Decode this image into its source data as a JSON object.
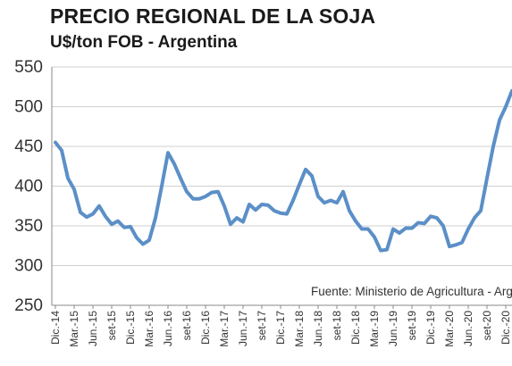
{
  "chart_data": {
    "type": "line",
    "title": "PRECIO REGIONAL DE LA SOJA",
    "subtitle": "U$/ton FOB - Argentina",
    "source": "Fuente: Ministerio de Agricultura - Argentina",
    "ylim": [
      250,
      550
    ],
    "yticks": [
      250,
      300,
      350,
      400,
      450,
      500,
      550
    ],
    "grid": true,
    "line_color": "#5b8fc7",
    "xtick_labels": [
      "Dic.-14",
      "Mar.-15",
      "Jun.-15",
      "set-15",
      "Dic.-15",
      "Mar.-16",
      "Jun.-16",
      "set-16",
      "Dic.-16",
      "Mar.-17",
      "Jun.-17",
      "set-17",
      "Dic.-17",
      "Mar.-18",
      "Jun.-18",
      "set-18",
      "Dic.-18",
      "Mar.-19",
      "Jun.-19",
      "set-19",
      "Dic.-19",
      "Mar.-20",
      "Jun.-20",
      "set-20",
      "Dic.-20"
    ],
    "series": [
      {
        "values": [
          455,
          445,
          410,
          396,
          367,
          361,
          365,
          375,
          362,
          352,
          356,
          348,
          349,
          335,
          327,
          332,
          360,
          400,
          442,
          428,
          410,
          393,
          384,
          384,
          387,
          392,
          393,
          375,
          352,
          360,
          355,
          377,
          370,
          377,
          376,
          369,
          366,
          365,
          382,
          402,
          421,
          413,
          387,
          379,
          382,
          379,
          393,
          369,
          356,
          346,
          346,
          336,
          319,
          320,
          346,
          341,
          347,
          347,
          354,
          353,
          362,
          360,
          350,
          324,
          326,
          329,
          346,
          360,
          369,
          410,
          450,
          483,
          500,
          520
        ]
      }
    ]
  }
}
